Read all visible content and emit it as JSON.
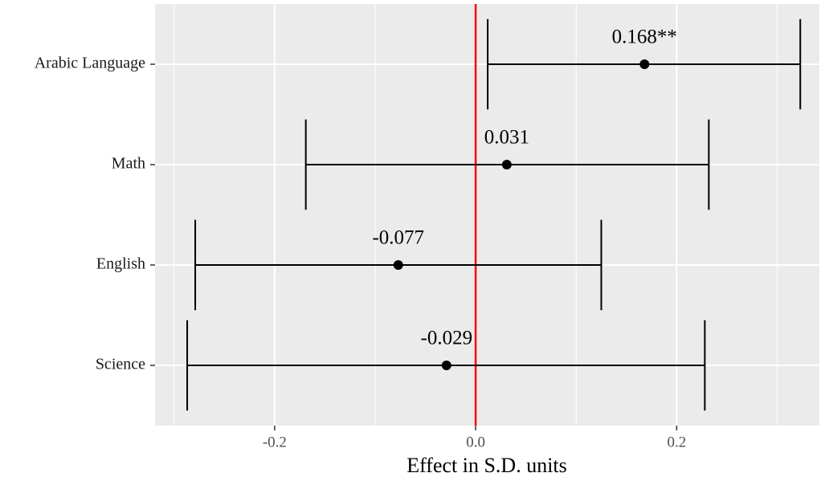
{
  "chart_data": {
    "type": "errorbar",
    "orientation": "horizontal",
    "categories": [
      "Arabic Language",
      "Math",
      "English",
      "Science"
    ],
    "values": [
      0.168,
      0.031,
      -0.077,
      -0.029
    ],
    "value_labels": [
      "0.168**",
      "0.031",
      "-0.077",
      "-0.029"
    ],
    "lower": [
      0.012,
      -0.169,
      -0.279,
      -0.287
    ],
    "upper": [
      0.323,
      0.232,
      0.125,
      0.228
    ],
    "color": "#000000",
    "xlabel": "Effect in S.D. units",
    "xlim": [
      -0.319,
      0.342
    ],
    "xticks": [
      -0.2,
      {
        "value": 0,
        "label": "0.0"
      },
      0.2
    ],
    "minor_xticks": [
      -0.3,
      -0.1,
      0.1,
      0.3
    ],
    "reference_line": {
      "value": 0,
      "color": "#ff0000"
    },
    "grid": true
  }
}
